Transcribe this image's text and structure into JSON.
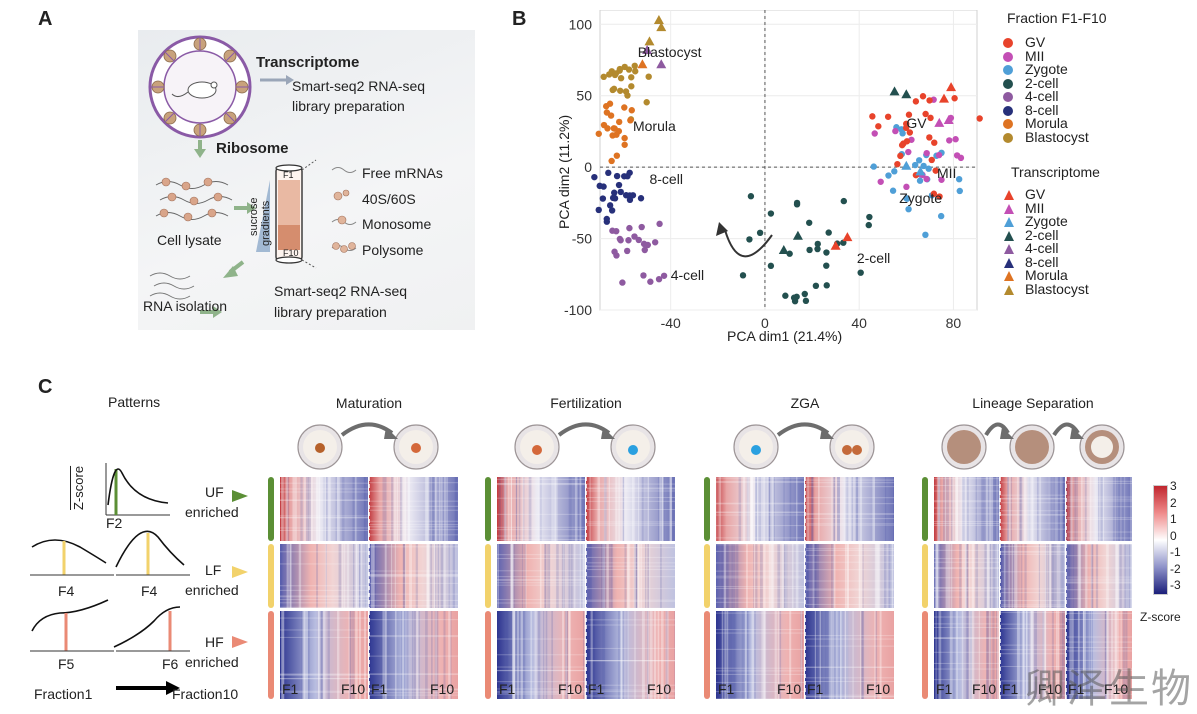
{
  "panel_letters": {
    "a": "A",
    "b": "B",
    "c": "C"
  },
  "panelA": {
    "transcriptome_title": "Transcriptome",
    "transcriptome_desc_1": "Smart-seq2 RNA-seq",
    "transcriptome_desc_2": "library preparation",
    "ribosome_title": "Ribosome",
    "cell_lysate": "Cell lysate",
    "gradient_label_1": "sucrose",
    "gradient_label_2": "gradients",
    "tube_top": "F1",
    "tube_bottom": "F10",
    "fractions": [
      "Free mRNAs",
      "40S/60S",
      "Monosome",
      "Polysome"
    ],
    "rna_isolation": "RNA isolation",
    "library_desc_1": "Smart-seq2 RNA-seq",
    "library_desc_2": "library preparation"
  },
  "chart_data": {
    "type": "scatter",
    "xlabel": "PCA dim1 (21.4%)",
    "ylabel": "PCA dim2   (11.2%)",
    "xlim": [
      -70,
      90
    ],
    "ylim": [
      -100,
      110
    ],
    "xticks": [
      -40,
      0,
      40,
      80
    ],
    "yticks": [
      100,
      50,
      0,
      -50,
      -100
    ],
    "legend_fraction_title": "Fraction F1-F10",
    "legend_transcriptome_title": "Transcriptome",
    "stages": [
      {
        "name": "GV",
        "color": "#e8432b"
      },
      {
        "name": "MII",
        "color": "#c34fb5"
      },
      {
        "name": "Zygote",
        "color": "#4f9fd7"
      },
      {
        "name": "2-cell",
        "color": "#23504f"
      },
      {
        "name": "4-cell",
        "color": "#8e5aa0"
      },
      {
        "name": "8-cell",
        "color": "#27307a"
      },
      {
        "name": "Morula",
        "color": "#de7322"
      },
      {
        "name": "Blastocyst",
        "color": "#b38a2e"
      }
    ],
    "annotations": [
      {
        "text": "Blastocyst",
        "x": -54,
        "y": 80
      },
      {
        "text": "Morula",
        "x": -56,
        "y": 28
      },
      {
        "text": "8-cell",
        "x": -49,
        "y": -9
      },
      {
        "text": "4-cell",
        "x": -40,
        "y": -76
      },
      {
        "text": "GV",
        "x": 60,
        "y": 30
      },
      {
        "text": "MII",
        "x": 73,
        "y": -5
      },
      {
        "text": "Zygote",
        "x": 57,
        "y": -22
      },
      {
        "text": "2-cell",
        "x": 39,
        "y": -64
      }
    ],
    "clusters": [
      {
        "stage": "Blastocyst",
        "cx": -61,
        "cy": 60,
        "sx": 4,
        "sy": 12,
        "n": 22
      },
      {
        "stage": "Morula",
        "cx": -64,
        "cy": 28,
        "sx": 3,
        "sy": 8,
        "n": 20
      },
      {
        "stage": "8-cell",
        "cx": -62,
        "cy": -22,
        "sx": 4,
        "sy": 10,
        "n": 24
      },
      {
        "stage": "4-cell",
        "cx": -54,
        "cy": -62,
        "sx": 6,
        "sy": 14,
        "n": 22
      },
      {
        "stage": "2-cell",
        "cx": 20,
        "cy": -58,
        "sx": 14,
        "sy": 16,
        "n": 30
      },
      {
        "stage": "Zygote",
        "cx": 65,
        "cy": -8,
        "sx": 9,
        "sy": 16,
        "n": 26
      },
      {
        "stage": "MII",
        "cx": 66,
        "cy": 8,
        "sx": 10,
        "sy": 18,
        "n": 18
      },
      {
        "stage": "GV",
        "cx": 66,
        "cy": 22,
        "sx": 9,
        "sy": 18,
        "n": 26
      }
    ],
    "triangles": [
      {
        "stage": "Blastocyst",
        "x": -45,
        "y": 103
      },
      {
        "stage": "Blastocyst",
        "x": -44,
        "y": 98
      },
      {
        "stage": "Blastocyst",
        "x": -49,
        "y": 88
      },
      {
        "stage": "4-cell",
        "x": -50,
        "y": 82
      },
      {
        "stage": "4-cell",
        "x": -44,
        "y": 72
      },
      {
        "stage": "Morula",
        "x": -52,
        "y": 72
      },
      {
        "stage": "2-cell",
        "x": 55,
        "y": 53
      },
      {
        "stage": "2-cell",
        "x": 60,
        "y": 51
      },
      {
        "stage": "GV",
        "x": 79,
        "y": 56
      },
      {
        "stage": "GV",
        "x": 76,
        "y": 48
      },
      {
        "stage": "MII",
        "x": 78,
        "y": 33
      },
      {
        "stage": "MII",
        "x": 74,
        "y": 31
      },
      {
        "stage": "Zygote",
        "x": 60,
        "y": 1
      },
      {
        "stage": "Zygote",
        "x": 66,
        "y": -3
      },
      {
        "stage": "2-cell",
        "x": 14,
        "y": -48
      },
      {
        "stage": "2-cell",
        "x": 8,
        "y": -58
      },
      {
        "stage": "GV",
        "x": 30,
        "y": -55
      },
      {
        "stage": "GV",
        "x": 35,
        "y": -49
      }
    ]
  },
  "panelC": {
    "patterns_title": "Patterns",
    "zscore_label": "Z-score",
    "pattern_rows": [
      {
        "curve_labels": [
          "F2"
        ],
        "group": "UF",
        "group2": "enriched",
        "color": "#5b8f35"
      },
      {
        "curve_labels": [
          "F4",
          "F4"
        ],
        "group": "LF",
        "group2": "enriched",
        "color": "#f2d26b"
      },
      {
        "curve_labels": [
          "F5",
          "F6"
        ],
        "group": "HF",
        "group2": "enriched",
        "color": "#ea8a75"
      }
    ],
    "fraction_start": "Fraction1",
    "fraction_end": "Fraction10",
    "stages": [
      {
        "title": "Maturation",
        "xlabels": [
          "F1",
          "F10",
          "F1",
          "F10"
        ]
      },
      {
        "title": "Fertilization",
        "xlabels": [
          "F1",
          "F10",
          "F1",
          "F10"
        ]
      },
      {
        "title": "ZGA",
        "xlabels": [
          "F1",
          "F10",
          "F1",
          "F10"
        ]
      },
      {
        "title": "Lineage Separation",
        "xlabels": [
          "F1",
          "F10",
          "F1",
          "F10",
          "F1",
          "F10"
        ]
      }
    ],
    "colorbar": {
      "ticks": [
        "3",
        "2",
        "1",
        "0",
        "-1",
        "-2",
        "-3"
      ],
      "label": "Z-score"
    }
  },
  "watermark": "卿泽生物"
}
